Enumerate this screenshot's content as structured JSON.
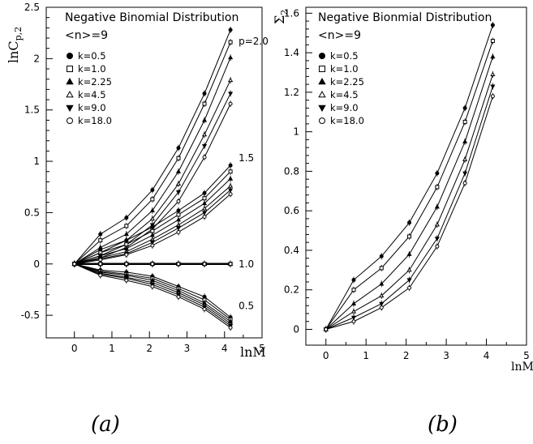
{
  "chart_data": [
    {
      "type": "line",
      "panel": "a",
      "caption": "(a)",
      "title": "Negative Binomial Distribution",
      "subtitle": "<n>=9",
      "xlabel": "lnM",
      "ylabel": "lnC",
      "ylabel_sub": "p,2",
      "xlim": [
        -0.75,
        5
      ],
      "ylim": [
        -0.72,
        2.5
      ],
      "xticks": [
        0,
        1,
        2,
        3,
        4,
        5
      ],
      "yticks": [
        -0.5,
        0,
        0.5,
        1,
        1.5,
        2,
        2.5
      ],
      "x": [
        0,
        0.693,
        1.386,
        2.079,
        2.773,
        3.466,
        4.159
      ],
      "legend": [
        {
          "label": "k=0.5",
          "marker": "filled-circle"
        },
        {
          "label": "k=1.0",
          "marker": "open-square"
        },
        {
          "label": "k=2.25",
          "marker": "filled-triangle-up"
        },
        {
          "label": "k=4.5",
          "marker": "open-triangle-up"
        },
        {
          "label": "k=9.0",
          "marker": "filled-triangle-down"
        },
        {
          "label": "k=18.0",
          "marker": "open-circle"
        }
      ],
      "groups": [
        {
          "label": "p=2.0",
          "series": [
            {
              "name": "k=0.5",
              "values": [
                0,
                0.29,
                0.45,
                0.72,
                1.13,
                1.66,
                2.28
              ]
            },
            {
              "name": "k=1.0",
              "values": [
                0,
                0.23,
                0.37,
                0.63,
                1.03,
                1.56,
                2.16
              ]
            },
            {
              "name": "k=2.25",
              "values": [
                0,
                0.16,
                0.29,
                0.52,
                0.9,
                1.4,
                2.01
              ]
            },
            {
              "name": "k=4.5",
              "values": [
                0,
                0.11,
                0.23,
                0.44,
                0.78,
                1.26,
                1.79
              ]
            },
            {
              "name": "k=9.0",
              "values": [
                0,
                0.08,
                0.19,
                0.38,
                0.7,
                1.15,
                1.66
              ]
            },
            {
              "name": "k=18.0",
              "values": [
                0,
                0.06,
                0.16,
                0.34,
                0.61,
                1.04,
                1.56
              ]
            }
          ]
        },
        {
          "label": "1.5",
          "series": [
            {
              "name": "k=0.5",
              "values": [
                0,
                0.14,
                0.23,
                0.36,
                0.52,
                0.69,
                0.96
              ]
            },
            {
              "name": "k=1.0",
              "values": [
                0,
                0.11,
                0.19,
                0.32,
                0.48,
                0.64,
                0.9
              ]
            },
            {
              "name": "k=2.25",
              "values": [
                0,
                0.08,
                0.15,
                0.28,
                0.43,
                0.59,
                0.83
              ]
            },
            {
              "name": "k=4.5",
              "values": [
                0,
                0.06,
                0.12,
                0.24,
                0.38,
                0.54,
                0.76
              ]
            },
            {
              "name": "k=9.0",
              "values": [
                0,
                0.05,
                0.1,
                0.21,
                0.35,
                0.5,
                0.72
              ]
            },
            {
              "name": "k=18.0",
              "values": [
                0,
                0.04,
                0.09,
                0.18,
                0.31,
                0.46,
                0.68
              ]
            }
          ]
        },
        {
          "label": "1.0",
          "series": [
            {
              "name": "k=0.5",
              "values": [
                0,
                0,
                0,
                0,
                0,
                0,
                0
              ]
            },
            {
              "name": "k=1.0",
              "values": [
                0,
                0,
                0,
                0,
                0,
                0,
                0
              ]
            },
            {
              "name": "k=2.25",
              "values": [
                0,
                0,
                0,
                0,
                0,
                0,
                0
              ]
            },
            {
              "name": "k=4.5",
              "values": [
                0,
                0,
                0,
                0,
                0,
                0,
                0
              ]
            },
            {
              "name": "k=9.0",
              "values": [
                0,
                0,
                0,
                0,
                0,
                0,
                0
              ]
            },
            {
              "name": "k=18.0",
              "values": [
                0,
                0,
                0,
                0,
                0,
                0,
                0
              ]
            }
          ]
        },
        {
          "label": "0.5",
          "series": [
            {
              "name": "k=0.5",
              "values": [
                0,
                -0.06,
                -0.08,
                -0.12,
                -0.22,
                -0.32,
                -0.52
              ]
            },
            {
              "name": "k=1.0",
              "values": [
                0,
                -0.07,
                -0.1,
                -0.14,
                -0.24,
                -0.35,
                -0.54
              ]
            },
            {
              "name": "k=2.25",
              "values": [
                0,
                -0.08,
                -0.11,
                -0.16,
                -0.26,
                -0.38,
                -0.56
              ]
            },
            {
              "name": "k=4.5",
              "values": [
                0,
                -0.09,
                -0.13,
                -0.18,
                -0.28,
                -0.4,
                -0.58
              ]
            },
            {
              "name": "k=9.0",
              "values": [
                0,
                -0.1,
                -0.14,
                -0.2,
                -0.3,
                -0.42,
                -0.6
              ]
            },
            {
              "name": "k=18.0",
              "values": [
                0,
                -0.11,
                -0.16,
                -0.22,
                -0.32,
                -0.44,
                -0.62
              ]
            }
          ]
        }
      ]
    },
    {
      "type": "line",
      "panel": "b",
      "caption": "(b)",
      "title": "Negative Bionmial Distribution",
      "subtitle": "<n>=9",
      "xlabel": "lnM",
      "ylabel": "Σ",
      "ylabel_sub": "2",
      "xlim": [
        -0.5,
        5
      ],
      "ylim": [
        -0.08,
        1.63
      ],
      "xticks": [
        0,
        1,
        2,
        3,
        4,
        5
      ],
      "yticks": [
        0,
        0.2,
        0.4,
        0.6,
        0.8,
        1,
        1.2,
        1.4,
        1.6
      ],
      "x": [
        0,
        0.693,
        1.386,
        2.079,
        2.773,
        3.466,
        4.159
      ],
      "legend": [
        {
          "label": "k=0.5",
          "marker": "filled-circle"
        },
        {
          "label": "k=1.0",
          "marker": "open-square"
        },
        {
          "label": "k=2.25",
          "marker": "filled-triangle-up"
        },
        {
          "label": "k=4.5",
          "marker": "open-triangle-up"
        },
        {
          "label": "k=9.0",
          "marker": "filled-triangle-down"
        },
        {
          "label": "k=18.0",
          "marker": "open-circle"
        }
      ],
      "series": [
        {
          "name": "k=0.5",
          "values": [
            0,
            0.25,
            0.37,
            0.54,
            0.79,
            1.12,
            1.54
          ]
        },
        {
          "name": "k=1.0",
          "values": [
            0,
            0.2,
            0.31,
            0.47,
            0.72,
            1.05,
            1.46
          ]
        },
        {
          "name": "k=2.25",
          "values": [
            0,
            0.13,
            0.23,
            0.38,
            0.62,
            0.95,
            1.38
          ]
        },
        {
          "name": "k=4.5",
          "values": [
            0,
            0.09,
            0.17,
            0.3,
            0.53,
            0.86,
            1.29
          ]
        },
        {
          "name": "k=9.0",
          "values": [
            0,
            0.06,
            0.13,
            0.25,
            0.46,
            0.79,
            1.23
          ]
        },
        {
          "name": "k=18.0",
          "values": [
            0,
            0.04,
            0.11,
            0.21,
            0.42,
            0.74,
            1.18
          ]
        }
      ]
    }
  ]
}
